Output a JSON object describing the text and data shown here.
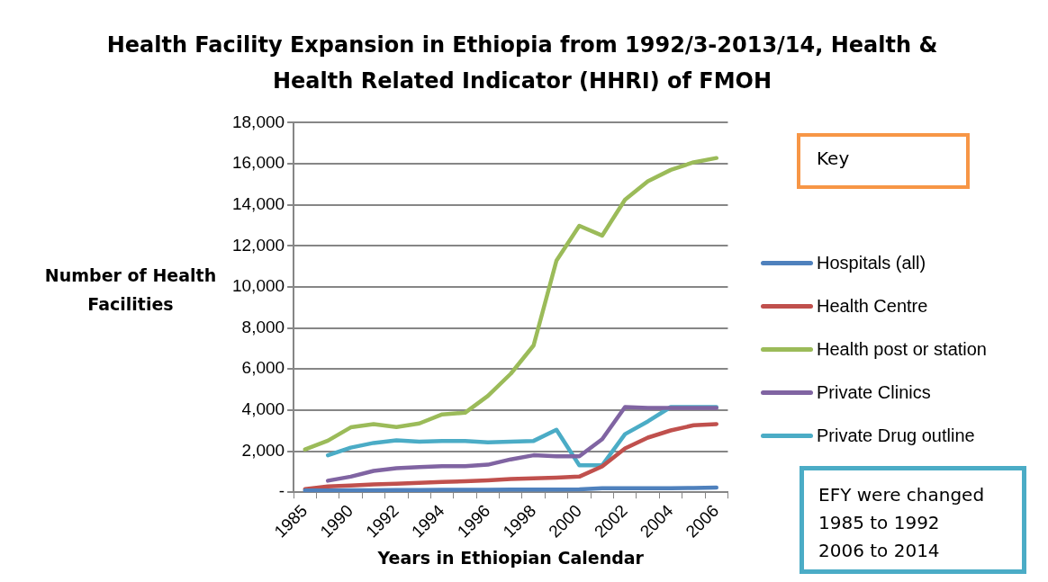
{
  "chart_data": {
    "type": "line",
    "title": "Health Facility Expansion in Ethiopia from 1992/3-2013/14, Health & Health Related Indicator (HHRI) of FMOH",
    "xlabel": "Years in Ethiopian Calendar",
    "ylabel": "Number of Health Facilities",
    "categories": [
      "1985",
      null,
      "1990",
      null,
      "1992",
      null,
      "1994",
      null,
      "1996",
      null,
      "1998",
      null,
      "2000",
      null,
      "2002",
      null,
      "2004",
      null,
      "2006"
    ],
    "series": [
      {
        "name": "Hospitals (all)",
        "color": "#4f81bd",
        "values": [
          80,
          90,
          100,
          100,
          110,
          110,
          120,
          120,
          120,
          130,
          130,
          130,
          140,
          190,
          200,
          200,
          200,
          210,
          230
        ]
      },
      {
        "name": "Health Centre",
        "color": "#c0504d",
        "values": [
          150,
          280,
          330,
          380,
          410,
          460,
          500,
          530,
          580,
          640,
          680,
          710,
          760,
          1260,
          2130,
          2660,
          3010,
          3260,
          3320
        ]
      },
      {
        "name": "Health post or station",
        "color": "#9bbb59",
        "values": [
          2080,
          2510,
          3160,
          3320,
          3170,
          3350,
          3790,
          3870,
          4690,
          5770,
          7150,
          11280,
          12980,
          12500,
          14250,
          15150,
          15700,
          16070,
          16280
        ]
      },
      {
        "name": "Private Clinics",
        "color": "#8064a2",
        "values": [
          null,
          560,
          760,
          1040,
          1170,
          1220,
          1270,
          1270,
          1340,
          1600,
          1800,
          1750,
          1750,
          2580,
          4150,
          4100,
          4100,
          4100,
          4100
        ]
      },
      {
        "name": "Private Drug outline",
        "color": "#4bacc6",
        "values": [
          null,
          1800,
          2170,
          2400,
          2530,
          2460,
          2500,
          2500,
          2430,
          2460,
          2500,
          3040,
          1310,
          1310,
          2830,
          3450,
          4150,
          4150,
          4150
        ]
      }
    ],
    "ylim": [
      0,
      18000
    ],
    "yticks": [
      {
        "value": 0,
        "label": "-"
      },
      {
        "value": 2000,
        "label": "2,000"
      },
      {
        "value": 4000,
        "label": "4,000"
      },
      {
        "value": 6000,
        "label": "6,000"
      },
      {
        "value": 8000,
        "label": "8,000"
      },
      {
        "value": 10000,
        "label": "10,000"
      },
      {
        "value": 12000,
        "label": "12,000"
      },
      {
        "value": 14000,
        "label": "14,000"
      },
      {
        "value": 16000,
        "label": "16,000"
      },
      {
        "value": 18000,
        "label": "18,000"
      }
    ],
    "grid": "y",
    "legend": "right",
    "marker": "none",
    "annotations": [
      "Key",
      "EFY  were changed\n1985 to 1992\n2006 to 2014"
    ]
  }
}
